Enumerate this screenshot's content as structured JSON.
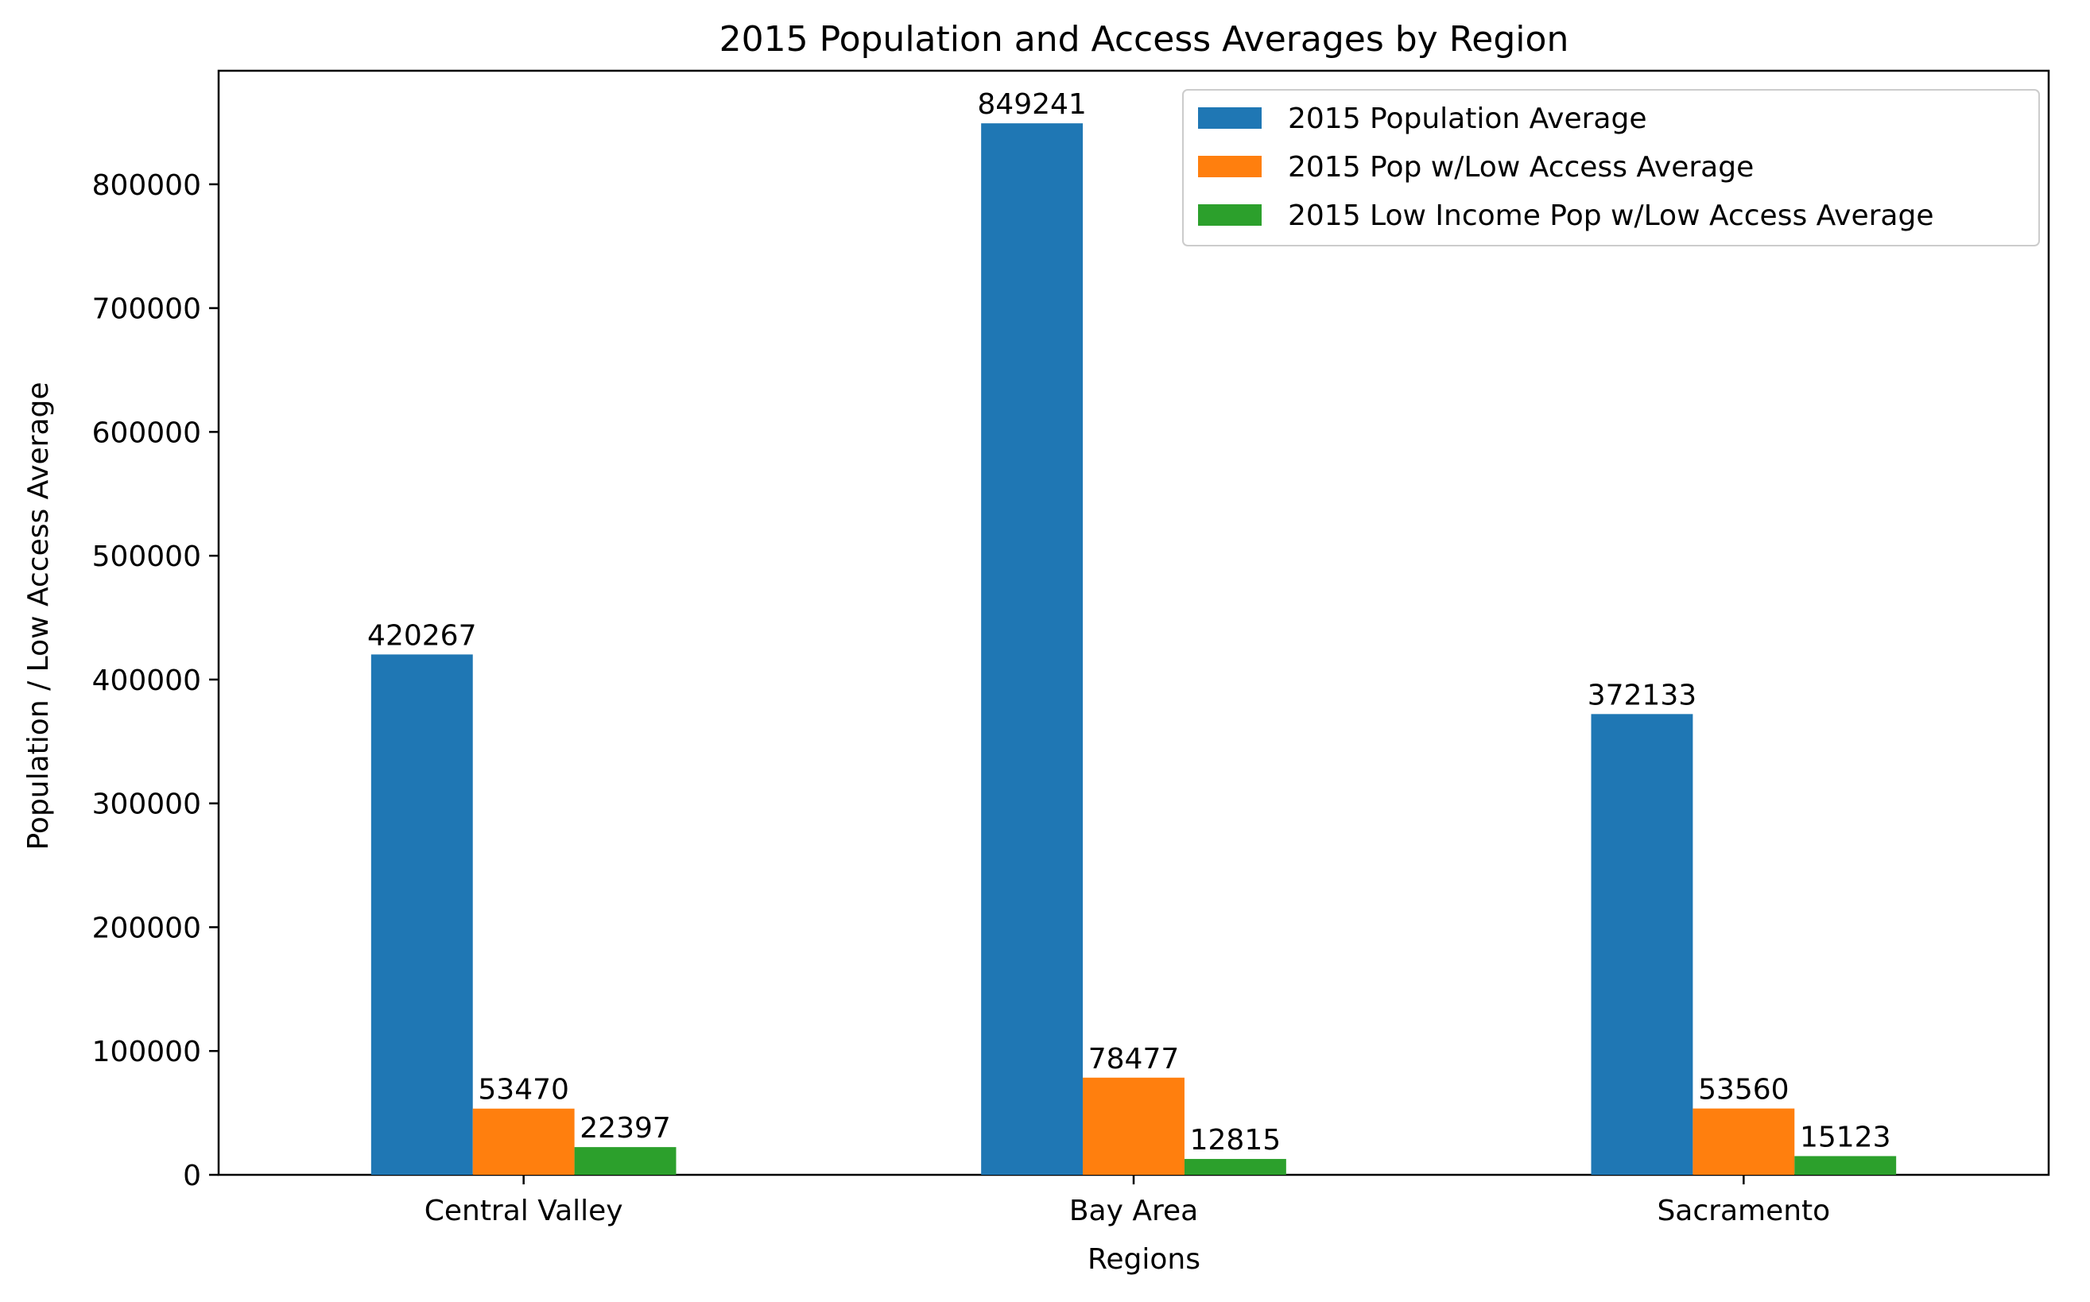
{
  "chart_data": {
    "type": "bar",
    "title": "2015 Population and Access Averages by Region",
    "xlabel": "Regions",
    "ylabel": "Population / Low Access Average",
    "categories": [
      "Central Valley",
      "Bay Area",
      "Sacramento"
    ],
    "series": [
      {
        "name": "2015 Population Average",
        "values": [
          420267,
          849241,
          372133
        ],
        "color": "#1f77b4"
      },
      {
        "name": "2015 Pop w/Low Access Average",
        "values": [
          53470,
          78477,
          53560
        ],
        "color": "#ff7f0e"
      },
      {
        "name": "2015 Low Income Pop w/Low Access Average",
        "values": [
          22397,
          12815,
          15123
        ],
        "color": "#2ca02c"
      }
    ],
    "ylim": [
      0,
      891703
    ],
    "yticks": [
      0,
      100000,
      200000,
      300000,
      400000,
      500000,
      600000,
      700000,
      800000
    ],
    "ytick_labels": [
      "0",
      "100000",
      "200000",
      "300000",
      "400000",
      "500000",
      "600000",
      "700000",
      "800000"
    ],
    "grid": false,
    "legend_position": "top-right",
    "data_labels": true
  }
}
